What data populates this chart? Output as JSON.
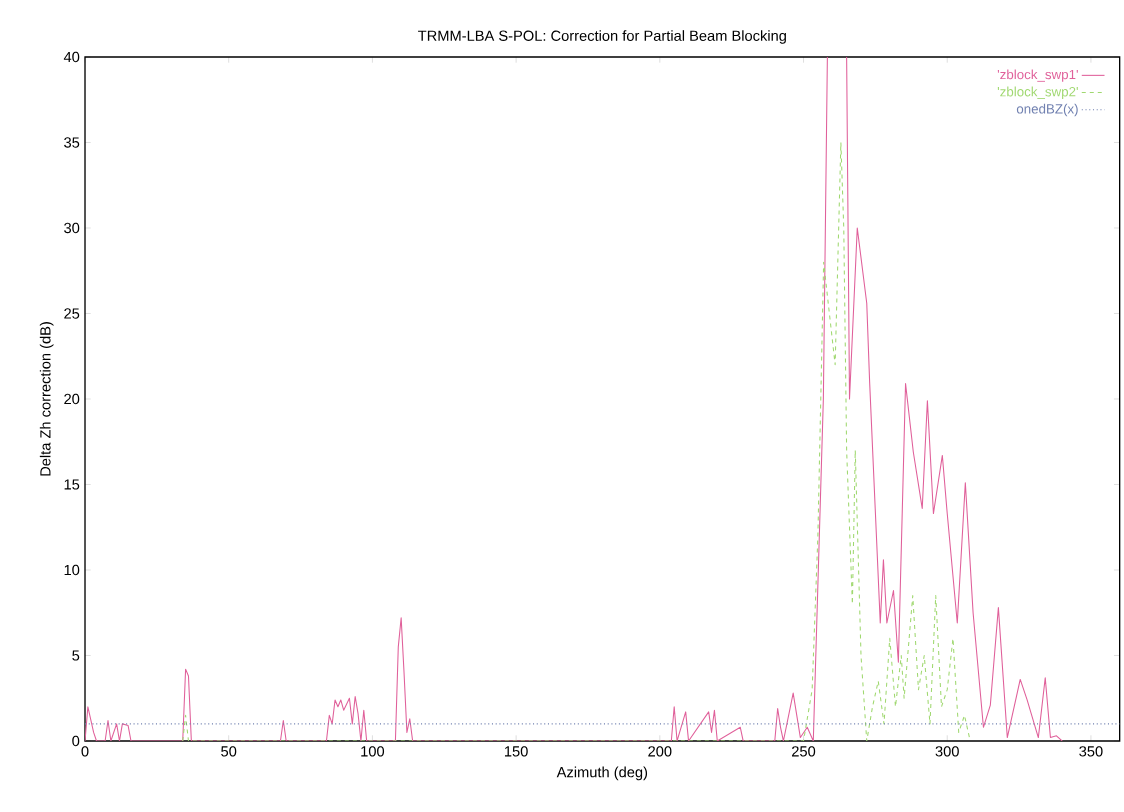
{
  "chart_data": {
    "type": "line",
    "title": "TRMM-LBA S-POL: Correction for Partial Beam Blocking",
    "xlabel": "Azimuth (deg)",
    "ylabel": "Delta Zh correction (dB)",
    "xlim": [
      0,
      360
    ],
    "ylim": [
      0,
      40
    ],
    "xticks": [
      0,
      50,
      100,
      150,
      200,
      250,
      300,
      350
    ],
    "yticks": [
      0,
      5,
      10,
      15,
      20,
      25,
      30,
      35,
      40
    ],
    "legend": "top right",
    "series": [
      {
        "name": "'zblock_swp1'",
        "color": "#e0609a",
        "line_style": "solid",
        "x": [
          0,
          1,
          3,
          4,
          7,
          8,
          9,
          11,
          12,
          13,
          15,
          16,
          34,
          35,
          36,
          37,
          68,
          69,
          70,
          84,
          85,
          86,
          87,
          88,
          89,
          90,
          92,
          93,
          94,
          95,
          96,
          97,
          98,
          108,
          109,
          110,
          111,
          112,
          113,
          114,
          204,
          205,
          206,
          209,
          210,
          217,
          218,
          219,
          220,
          228,
          229,
          240,
          241,
          242,
          243,
          246.4,
          248.9,
          251.3,
          253.4,
          256.9,
          258.3,
          261,
          265,
          266,
          268.7,
          272,
          273,
          276.7,
          277.8,
          279,
          281.3,
          283,
          285.5,
          288.2,
          291.3,
          293.1,
          295.2,
          298.3,
          300,
          303.5,
          306.3,
          309,
          312.6,
          315,
          317.8,
          320.9,
          325.4,
          327.8,
          331.7,
          334.1,
          335.9,
          338,
          340
        ],
        "values": [
          0,
          2,
          0.5,
          0,
          0,
          1.2,
          0,
          1,
          0,
          1,
          0.9,
          0,
          0,
          4.2,
          3.8,
          0,
          0,
          1.2,
          0,
          0,
          1.5,
          1,
          2.4,
          2,
          2.4,
          1.8,
          2.5,
          1,
          2.6,
          1.6,
          0,
          1.8,
          0,
          0,
          5.5,
          7.2,
          4,
          0.5,
          1.3,
          0,
          0,
          2,
          0,
          1.7,
          0,
          1.7,
          0.5,
          1.8,
          0,
          0.8,
          0,
          0,
          1.9,
          0.8,
          0,
          2.8,
          0.2,
          0.8,
          0,
          20,
          40,
          null,
          40,
          20,
          30,
          25.6,
          21,
          6.9,
          10.6,
          6.9,
          8.8,
          4.6,
          20.9,
          16.9,
          13.6,
          19.9,
          13.3,
          16.7,
          13.3,
          6.9,
          15.1,
          7.5,
          0.8,
          2.1,
          7.8,
          0.2,
          3.6,
          2.4,
          0.2,
          3.7,
          0.2,
          0.3,
          0
        ]
      },
      {
        "name": "'zblock_swp2'",
        "color": "#a0d870",
        "line_style": "dashed",
        "x": [
          34,
          35,
          36,
          250,
          253,
          255,
          257,
          259,
          261,
          263,
          264,
          265,
          267,
          268,
          270,
          272,
          274,
          276,
          278,
          280,
          282,
          284,
          285,
          288,
          290,
          292,
          294,
          296,
          298,
          300,
          302,
          304,
          306,
          308
        ],
        "values": [
          0,
          1.5,
          0,
          0,
          3,
          12,
          28,
          25,
          22,
          35,
          30,
          17,
          8,
          17,
          5,
          0,
          2,
          3.5,
          1,
          6,
          2,
          5,
          2.5,
          8.5,
          3,
          5,
          1,
          8.5,
          2,
          3,
          6,
          0.5,
          1.5,
          0
        ]
      },
      {
        "name": "onedBZ(x)",
        "color": "#7080b0",
        "line_style": "dotted",
        "x": [
          0,
          360
        ],
        "values": [
          1,
          1
        ]
      }
    ]
  }
}
